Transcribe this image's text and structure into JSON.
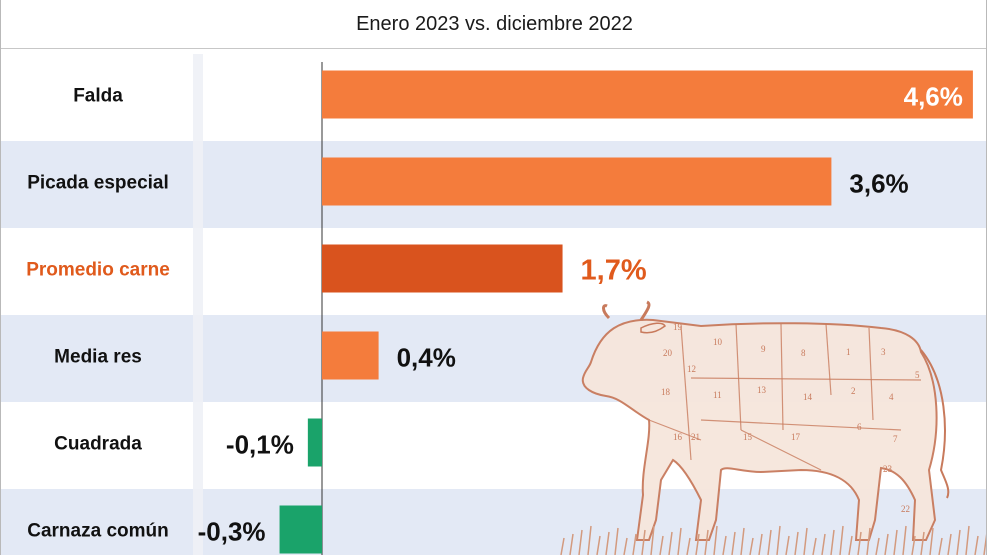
{
  "chart_data": {
    "type": "bar",
    "orientation": "horizontal",
    "title": "Enero 2023 vs. diciembre 2022",
    "categories": [
      "Falda",
      "Picada especial",
      "Promedio carne",
      "Media res",
      "Cuadrada",
      "Carnaza común"
    ],
    "values": [
      4.6,
      3.6,
      1.7,
      0.4,
      -0.1,
      -0.3
    ],
    "value_labels": [
      "4,6%",
      "3,6%",
      "1,7%",
      "0,4%",
      "-0,1%",
      "-0,3%"
    ],
    "highlight_category": "Promedio carne",
    "grid": false,
    "legend": "none"
  },
  "colors": {
    "positive_bar": "#f47c3c",
    "highlight_bar": "#d9531e",
    "negative_bar": "#1aa36a",
    "highlight_text": "#e05a1c",
    "row_alt": "#e3e9f5",
    "label_panel_shadow": "#eef1f6"
  },
  "illustration": {
    "name": "cow-cuts-illustration",
    "cut_numbers": [
      "19",
      "10",
      "9",
      "8",
      "1",
      "3",
      "20",
      "12",
      "5",
      "18",
      "11",
      "13",
      "14",
      "2",
      "4",
      "21",
      "15",
      "17",
      "6",
      "7",
      "23",
      "16",
      "22"
    ]
  }
}
